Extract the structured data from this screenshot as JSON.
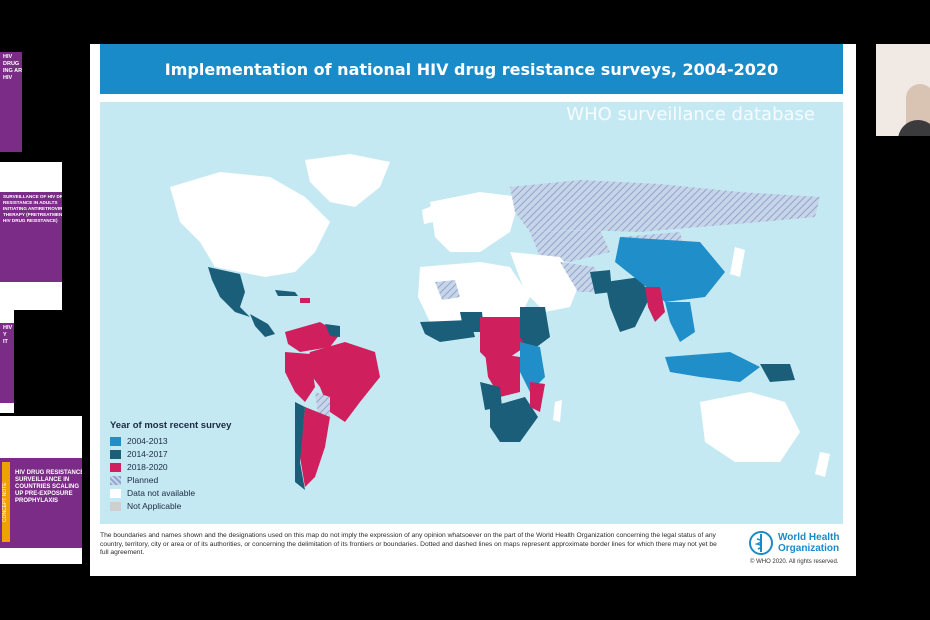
{
  "slide": {
    "title": "Implementation of national HIV drug resistance surveys, 2004-2020",
    "watermark": "WHO surveillance database",
    "legend": {
      "title": "Year of most recent survey",
      "items": [
        {
          "label": "2004-2013",
          "color": "#1f8ec9"
        },
        {
          "label": "2014-2017",
          "color": "#1b5e7a"
        },
        {
          "label": "2018-2020",
          "color": "#cf1f5c"
        },
        {
          "label": "Planned",
          "color": "#a9bcd9"
        },
        {
          "label": "Data not available",
          "color": "#ffffff"
        },
        {
          "label": "Not Applicable",
          "color": "#cfcfcf"
        }
      ]
    },
    "disclaimer": "The boundaries and names shown and the designations used on this map do not imply the expression of any opinion whatsoever on the part of the World Health Organization concerning the legal status of any country, territory, city or area or of its authorities, or concerning the delimitation of its frontiers or boundaries. Dotted and dashed lines on maps represent approximate border lines for which there may not yet be full agreement.",
    "who_name_line1": "World Health",
    "who_name_line2": "Organization",
    "copyright": "© WHO 2020. All rights reserved."
  },
  "thumbnails": [
    {
      "text": "HIV\nDRUG\nING ART\nHIV"
    },
    {
      "text": "SURVEILLANCE OF HIV DRUG\nRESISTANCE IN ADULTS\nINITIATING ANTIRETROVIRAL\nTHERAPY (PRETREATMENT\nHIV DRUG RESISTANCE)"
    },
    {
      "text": "HIV\nY\nIT"
    },
    {
      "text": "HIV DRUG RESISTANCE\nSURVEILLANCE IN\nCOUNTRIES SCALING\nUP PRE-EXPOSURE\nPROPHYLAXIS",
      "badge": "CONCEPT NOTE"
    }
  ],
  "colors": {
    "ocean": "#c5e9f3",
    "land": "#ffffff",
    "c2004_2013": "#1f8ec9",
    "c2014_2017": "#1b5e7a",
    "c2018_2020": "#cf1f5c",
    "planned": "#a9bcd9"
  }
}
